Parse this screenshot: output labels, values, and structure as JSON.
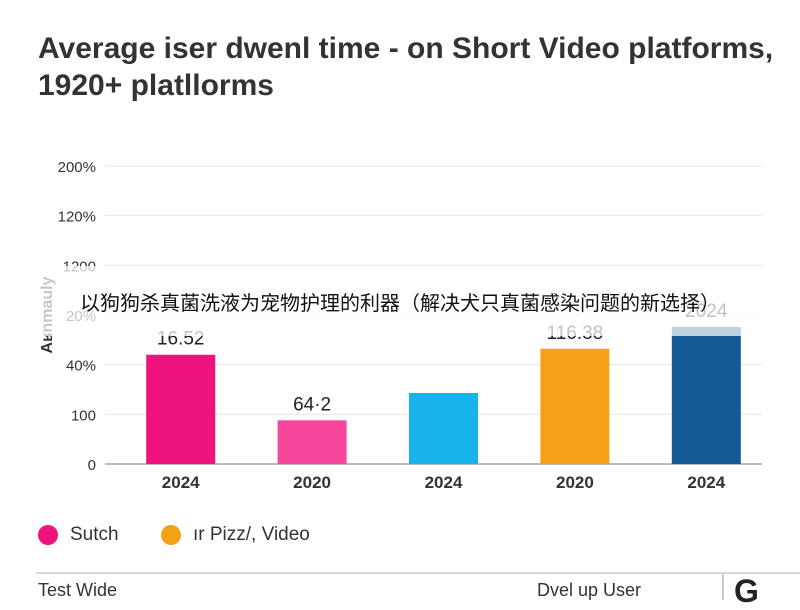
{
  "title": "Average iser dwenl time - on Short Video platforms, 1920+ platllorms",
  "chart_data": {
    "type": "bar",
    "y_tick_labels": [
      "0",
      "100",
      "40%",
      "20%",
      "1200",
      "120%",
      "200%"
    ],
    "y_axis_label": "Aʁnmauly",
    "categories": [
      "2024",
      "2020",
      "2024",
      "2020",
      "2024"
    ],
    "values": [
      2.2,
      0.88,
      1.43,
      2.32,
      2.76
    ],
    "data_labels": [
      "16.52",
      "64·2",
      "",
      "116.38",
      "2024"
    ],
    "colors": [
      "#f0137d",
      "#f5479c",
      "#18b2ec",
      "#f5a115",
      "#125a93"
    ],
    "grid": true
  },
  "overlay": {
    "text": "以狗狗杀真菌洗液为宠物护理的利器（解决犬只真菌感染问题的新选择）"
  },
  "legend": [
    {
      "label": "Sutch",
      "color": "#f0137d"
    },
    {
      "label": "ır Pizz/, Video",
      "color": "#f5a115"
    }
  ],
  "footer": {
    "left": "Test Wide",
    "right": "Dvel up User",
    "logo": "G"
  }
}
